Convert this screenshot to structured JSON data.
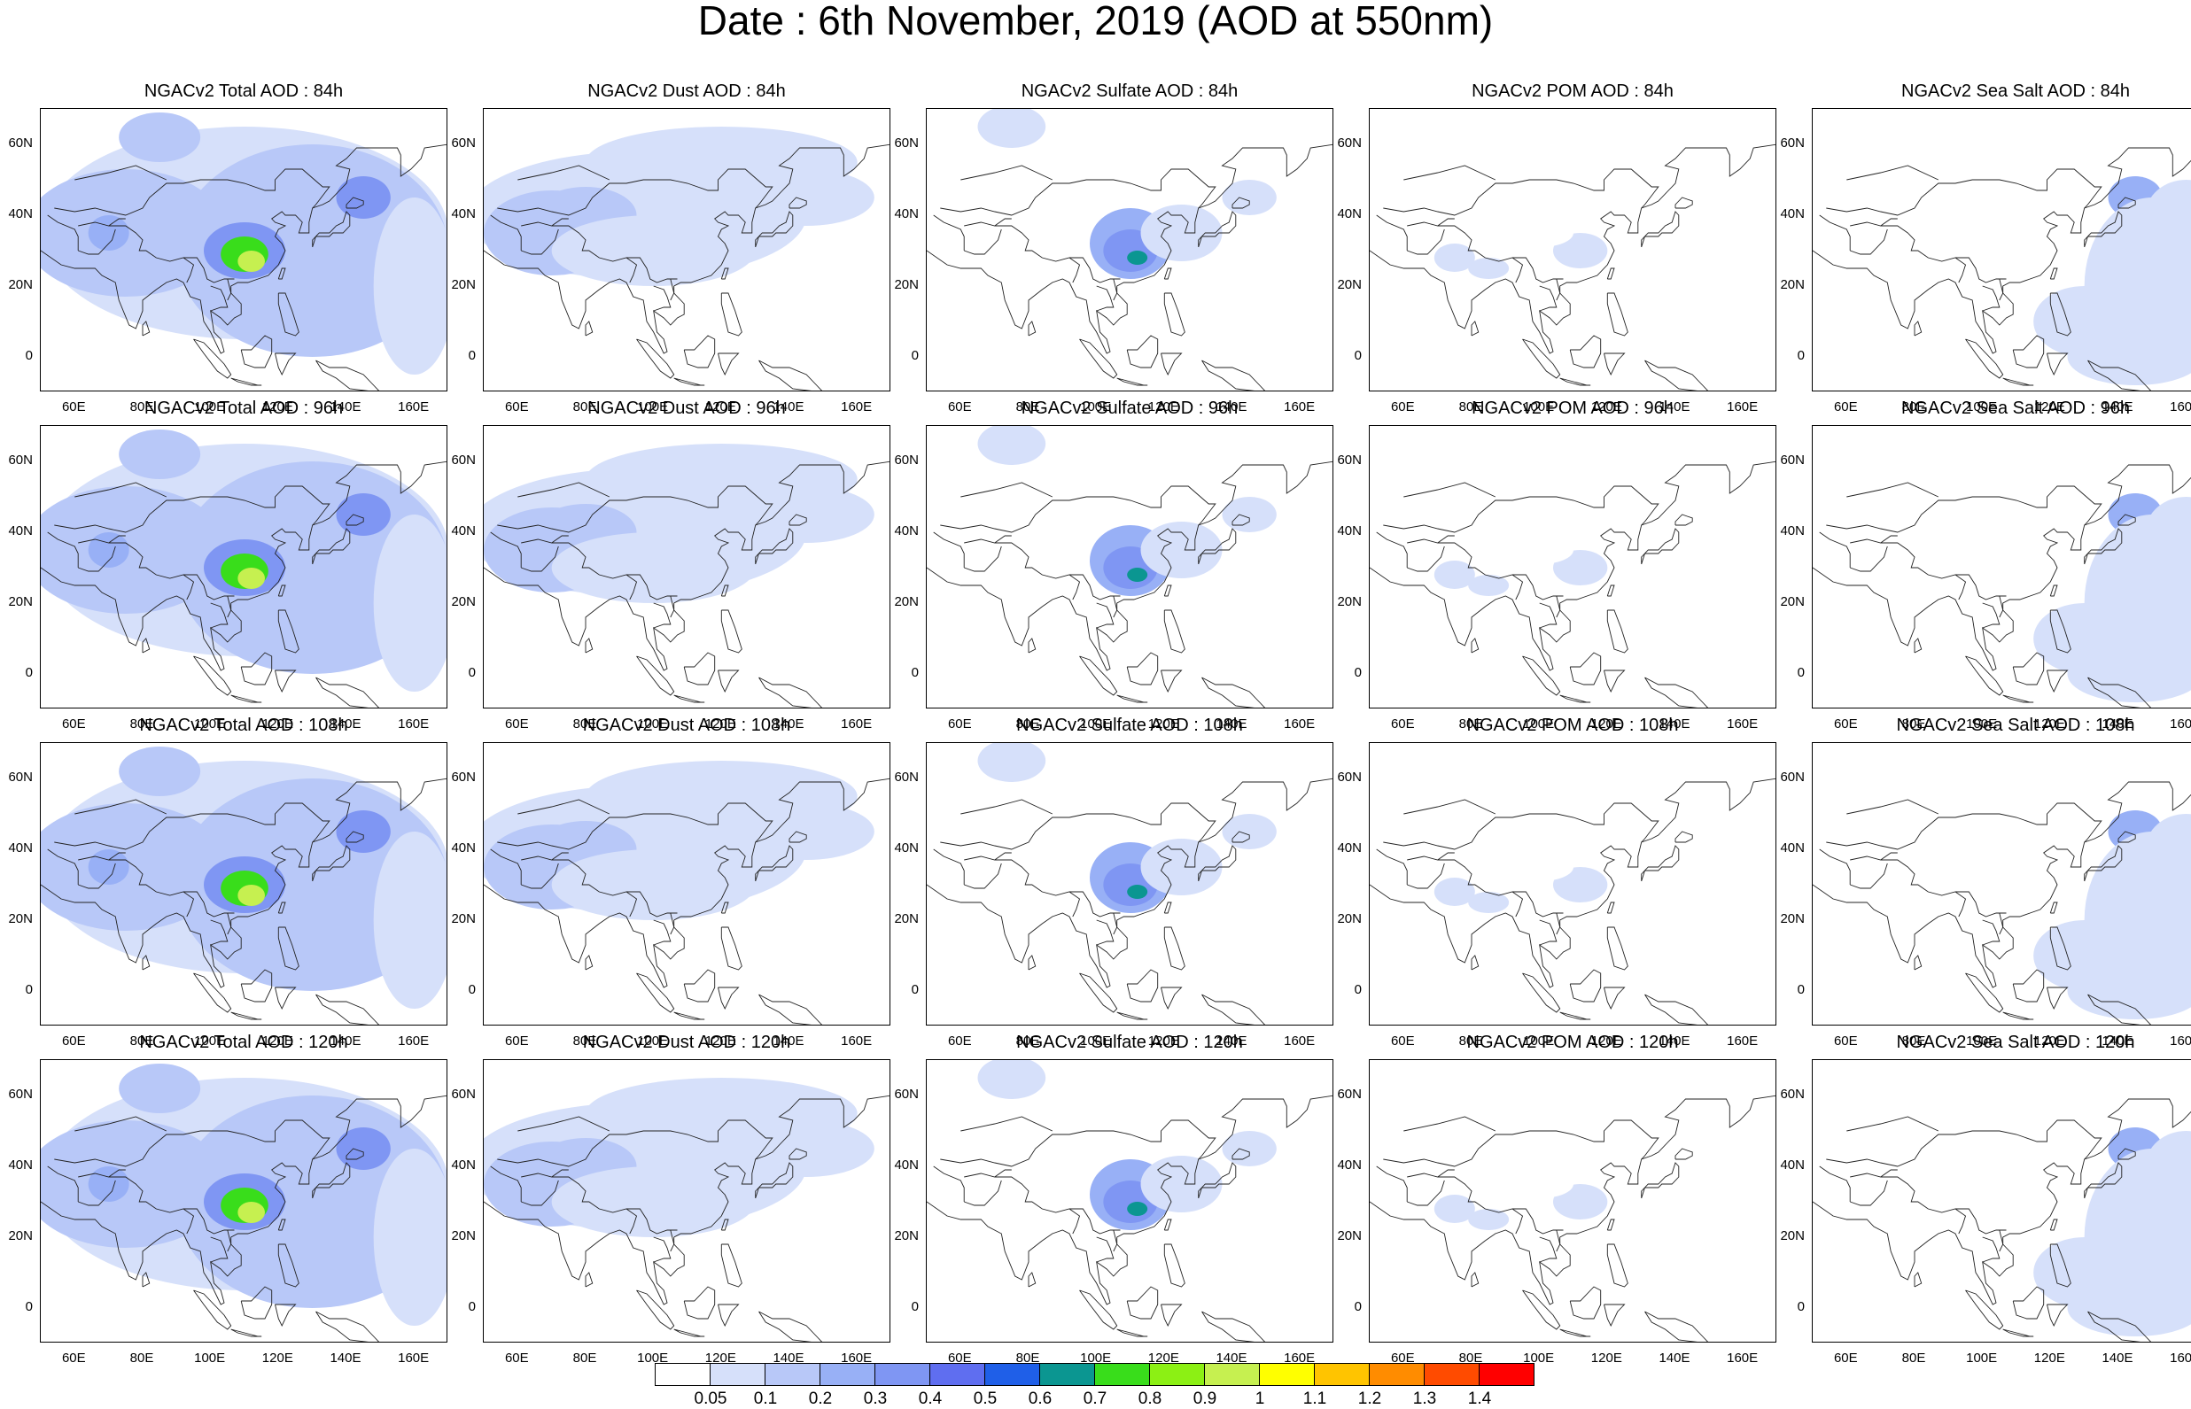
{
  "figure": {
    "title": "Date : 6th November, 2019 (AOD at 550nm)"
  },
  "rows": [
    {
      "lead": "84h",
      "panels": [
        {
          "title": "NGACv2 Total AOD : 84h",
          "kind": "total"
        },
        {
          "title": "NGACv2 Dust AOD : 84h",
          "kind": "dust"
        },
        {
          "title": "NGACv2 Sulfate AOD : 84h",
          "kind": "sulfate"
        },
        {
          "title": "NGACv2 POM AOD : 84h",
          "kind": "pom"
        },
        {
          "title": "NGACv2 Sea Salt AOD : 84h",
          "kind": "seasalt"
        }
      ]
    },
    {
      "lead": "96h",
      "panels": [
        {
          "title": "NGACv2 Total AOD : 96h",
          "kind": "total"
        },
        {
          "title": "NGACv2 Dust AOD : 96h",
          "kind": "dust"
        },
        {
          "title": "NGACv2 Sulfate AOD : 96h",
          "kind": "sulfate"
        },
        {
          "title": "NGACv2 POM AOD : 96h",
          "kind": "pom"
        },
        {
          "title": "NGACv2 Sea Salt AOD : 96h",
          "kind": "seasalt"
        }
      ]
    },
    {
      "lead": "108h",
      "panels": [
        {
          "title": "NGACv2 Total AOD : 108h",
          "kind": "total"
        },
        {
          "title": "NGACv2 Dust AOD : 108h",
          "kind": "dust"
        },
        {
          "title": "NGACv2 Sulfate AOD : 108h",
          "kind": "sulfate"
        },
        {
          "title": "NGACv2 POM AOD : 108h",
          "kind": "pom"
        },
        {
          "title": "NGACv2 Sea Salt AOD : 108h",
          "kind": "seasalt"
        }
      ]
    },
    {
      "lead": "120h",
      "panels": [
        {
          "title": "NGACv2 Total AOD : 120h",
          "kind": "total"
        },
        {
          "title": "NGACv2 Dust AOD : 120h",
          "kind": "dust"
        },
        {
          "title": "NGACv2 Sulfate AOD : 120h",
          "kind": "sulfate"
        },
        {
          "title": "NGACv2 POM AOD : 120h",
          "kind": "pom"
        },
        {
          "title": "NGACv2 Sea Salt  AOD : 120h",
          "kind": "seasalt"
        }
      ]
    }
  ],
  "axes": {
    "lat_labels": [
      "60N",
      "40N",
      "20N",
      "0"
    ],
    "lon_labels": [
      "60E",
      "80E",
      "100E",
      "120E",
      "140E",
      "160E"
    ],
    "lon_range": [
      50,
      170
    ],
    "lat_range": [
      -10,
      70
    ]
  },
  "colorbar": {
    "labels": [
      "0.05",
      "0.1",
      "0.2",
      "0.3",
      "0.4",
      "0.5",
      "0.6",
      "0.7",
      "0.8",
      "0.9",
      "1",
      "1.1",
      "1.2",
      "1.3",
      "1.4"
    ],
    "colors": [
      "#ffffff",
      "#d6e0fa",
      "#b8c8f8",
      "#98b0f6",
      "#7f96f3",
      "#5f6ef0",
      "#1f5fe8",
      "#0b9691",
      "#39dd1b",
      "#8cf014",
      "#c6f050",
      "#ffff00",
      "#ffc400",
      "#ff8c00",
      "#ff4b00",
      "#ff0000"
    ]
  }
}
